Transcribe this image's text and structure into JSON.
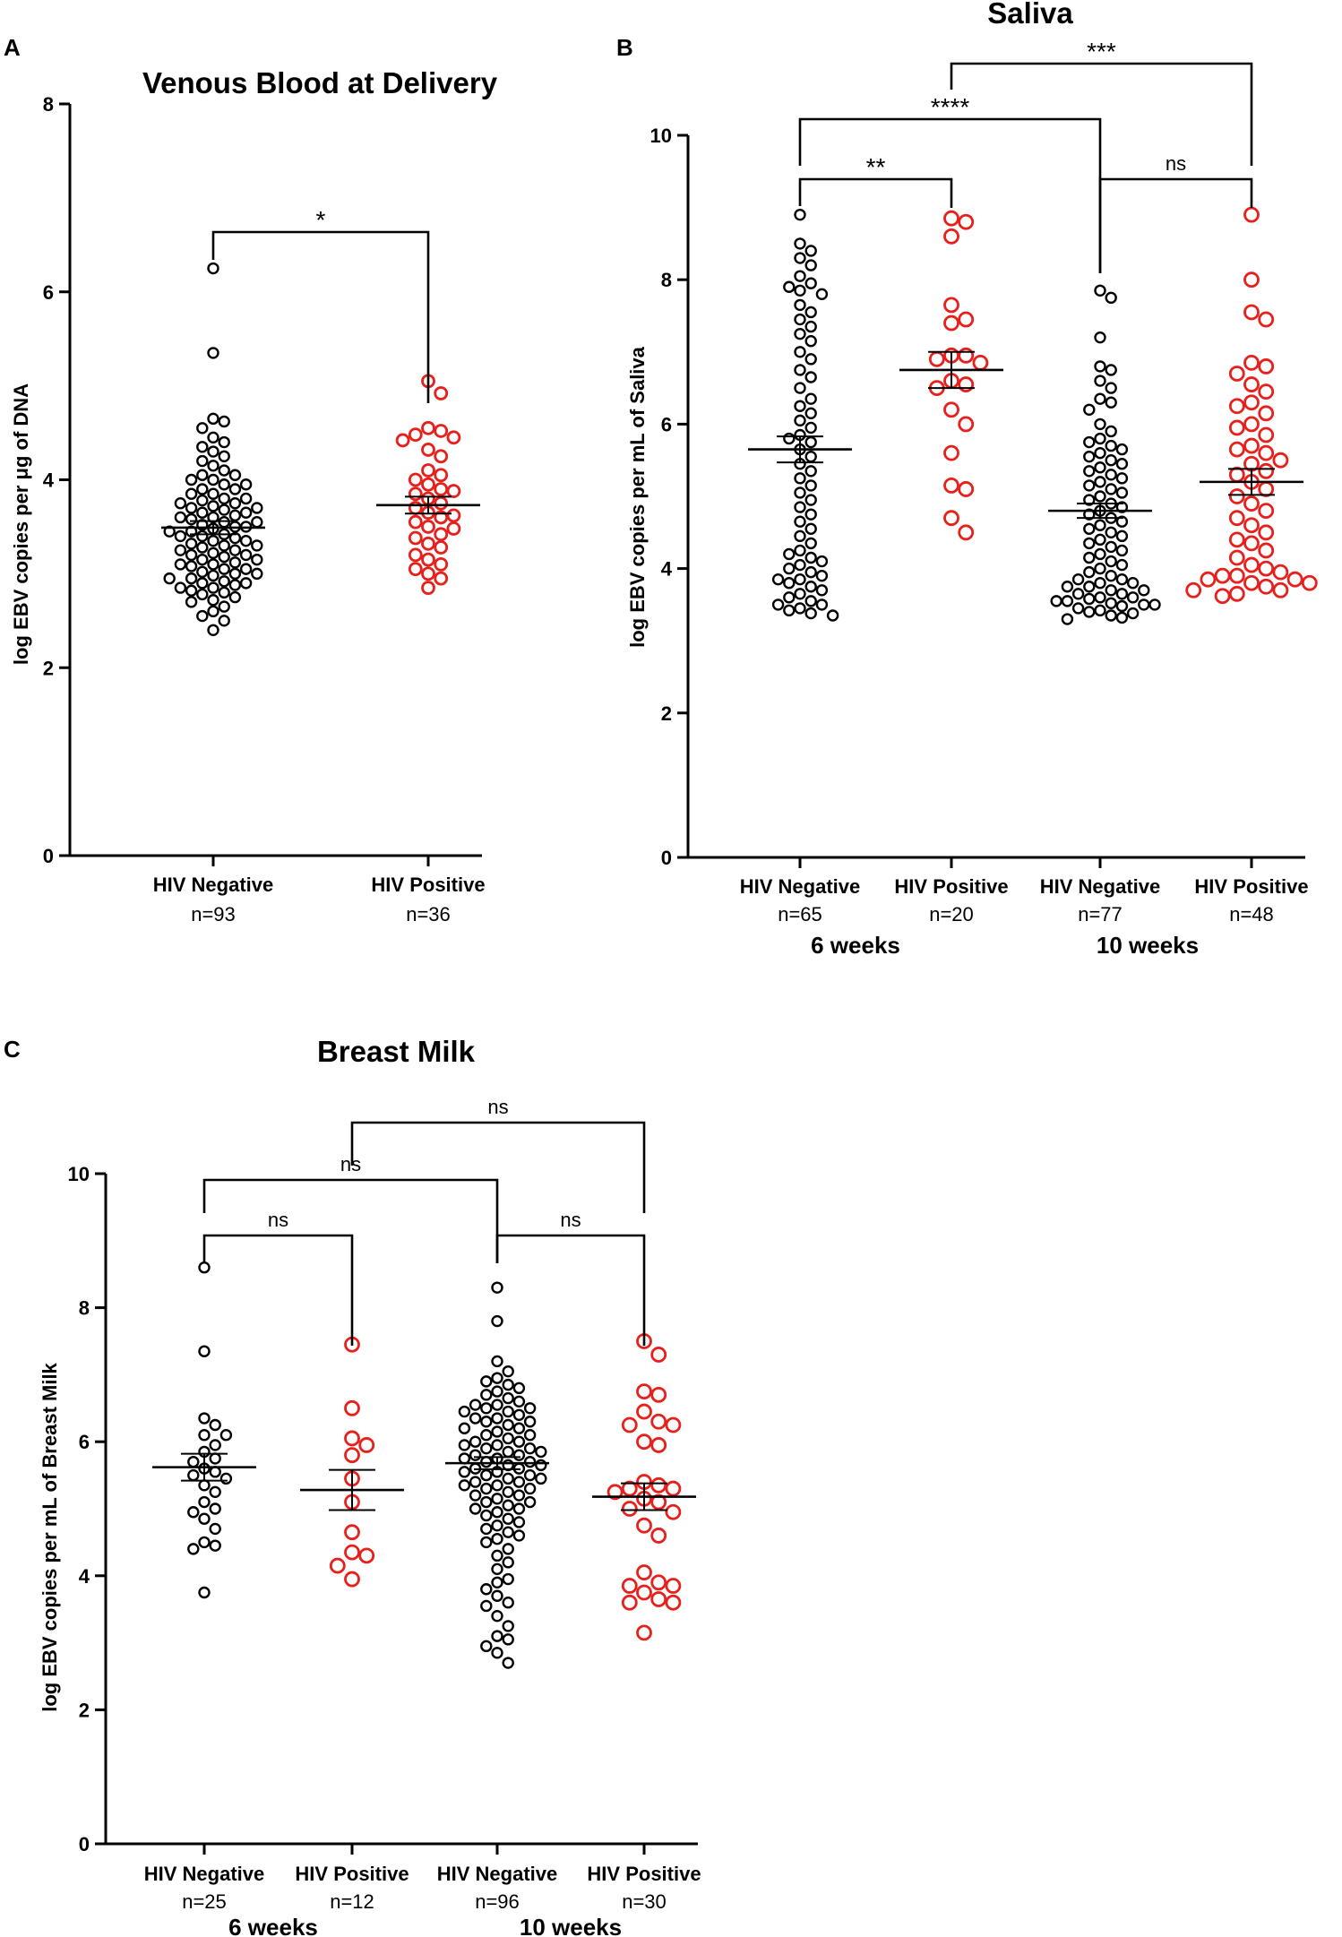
{
  "colors": {
    "negative": "#000000",
    "positive": "#e8201c",
    "axis": "#000000"
  },
  "chart_data": [
    {
      "panel": "A",
      "type": "scatter",
      "title": "Venous Blood at Delivery",
      "ylabel": "log EBV copies per μg of DNA",
      "ylim": [
        0,
        8
      ],
      "yticks": [
        "0",
        "2",
        "4",
        "6",
        "8"
      ],
      "groups": [
        {
          "name": "HIV Negative",
          "n": "n=93",
          "color": "negative",
          "mean": 3.49,
          "sem": 0.07,
          "values": [
            6.25,
            5.35,
            4.65,
            4.62,
            4.55,
            4.45,
            4.4,
            4.35,
            4.3,
            4.25,
            4.2,
            4.15,
            4.1,
            4.05,
            4.05,
            4.0,
            4.0,
            3.95,
            3.95,
            3.9,
            3.9,
            3.85,
            3.85,
            3.8,
            3.8,
            3.78,
            3.75,
            3.75,
            3.72,
            3.7,
            3.7,
            3.68,
            3.65,
            3.65,
            3.62,
            3.6,
            3.6,
            3.58,
            3.55,
            3.55,
            3.52,
            3.5,
            3.5,
            3.48,
            3.45,
            3.45,
            3.42,
            3.4,
            3.4,
            3.38,
            3.35,
            3.35,
            3.32,
            3.3,
            3.3,
            3.28,
            3.25,
            3.25,
            3.22,
            3.2,
            3.2,
            3.18,
            3.15,
            3.15,
            3.12,
            3.1,
            3.1,
            3.08,
            3.05,
            3.05,
            3.02,
            3.0,
            3.0,
            2.98,
            2.95,
            2.95,
            2.92,
            2.9,
            2.9,
            2.88,
            2.85,
            2.85,
            2.82,
            2.8,
            2.78,
            2.75,
            2.72,
            2.7,
            2.65,
            2.6,
            2.55,
            2.5,
            2.4
          ]
        },
        {
          "name": "HIV Positive",
          "n": "n=36",
          "color": "positive",
          "mean": 3.73,
          "sem": 0.09,
          "values": [
            5.05,
            4.92,
            4.55,
            4.52,
            4.48,
            4.45,
            4.42,
            4.32,
            4.25,
            4.1,
            4.05,
            4.0,
            3.95,
            3.9,
            3.88,
            3.85,
            3.8,
            3.75,
            3.7,
            3.65,
            3.62,
            3.6,
            3.55,
            3.5,
            3.48,
            3.42,
            3.38,
            3.32,
            3.28,
            3.2,
            3.15,
            3.1,
            3.05,
            3.0,
            2.95,
            2.85
          ]
        }
      ],
      "comparisons": [
        {
          "from": 0,
          "to": 1,
          "label": "*"
        }
      ]
    },
    {
      "panel": "B",
      "type": "scatter",
      "title": "Saliva",
      "ylabel": "log EBV copies per mL of Saliva",
      "ylim": [
        0,
        10
      ],
      "yticks": [
        "0",
        "2",
        "4",
        "6",
        "8",
        "10"
      ],
      "group_labels": [
        "6 weeks",
        "10 weeks"
      ],
      "groups": [
        {
          "name": "HIV Negative",
          "n": "n=65",
          "color": "negative",
          "mean": 5.65,
          "sem": 0.18,
          "values": [
            8.9,
            8.5,
            8.4,
            8.3,
            8.2,
            8.05,
            7.95,
            7.9,
            7.85,
            7.8,
            7.65,
            7.55,
            7.45,
            7.35,
            7.25,
            7.15,
            7.0,
            6.9,
            6.75,
            6.65,
            6.5,
            6.35,
            6.25,
            6.15,
            6.05,
            5.95,
            5.85,
            5.8,
            5.75,
            5.65,
            5.55,
            5.45,
            5.35,
            5.25,
            5.15,
            5.05,
            4.95,
            4.85,
            4.75,
            4.65,
            4.55,
            4.45,
            4.35,
            4.25,
            4.2,
            4.15,
            4.1,
            4.05,
            4.0,
            3.95,
            3.9,
            3.85,
            3.85,
            3.8,
            3.75,
            3.7,
            3.65,
            3.6,
            3.55,
            3.5,
            3.5,
            3.45,
            3.42,
            3.38,
            3.35
          ]
        },
        {
          "name": "HIV Positive",
          "n": "n=20",
          "color": "positive",
          "mean": 6.75,
          "sem": 0.25,
          "values": [
            8.85,
            8.8,
            8.6,
            7.65,
            7.45,
            7.4,
            6.95,
            6.95,
            6.9,
            6.85,
            6.6,
            6.55,
            6.5,
            6.2,
            6.0,
            5.6,
            5.15,
            5.1,
            4.7,
            4.5
          ]
        },
        {
          "name": "HIV Negative",
          "n": "n=77",
          "color": "negative",
          "mean": 4.8,
          "sem": 0.1,
          "values": [
            7.85,
            7.75,
            7.2,
            6.8,
            6.75,
            6.6,
            6.5,
            6.35,
            6.3,
            6.2,
            6.0,
            5.9,
            5.8,
            5.75,
            5.7,
            5.65,
            5.6,
            5.55,
            5.5,
            5.45,
            5.4,
            5.35,
            5.3,
            5.25,
            5.2,
            5.15,
            5.1,
            5.05,
            5.0,
            4.95,
            4.9,
            4.85,
            4.8,
            4.75,
            4.7,
            4.65,
            4.6,
            4.55,
            4.5,
            4.45,
            4.4,
            4.35,
            4.3,
            4.25,
            4.2,
            4.15,
            4.1,
            4.05,
            4.0,
            3.95,
            3.9,
            3.85,
            3.85,
            3.8,
            3.8,
            3.75,
            3.75,
            3.7,
            3.7,
            3.65,
            3.65,
            3.6,
            3.6,
            3.58,
            3.55,
            3.55,
            3.52,
            3.5,
            3.5,
            3.48,
            3.45,
            3.42,
            3.4,
            3.38,
            3.35,
            3.32,
            3.3
          ]
        },
        {
          "name": "HIV Positive",
          "n": "n=48",
          "color": "positive",
          "mean": 5.2,
          "sem": 0.18,
          "values": [
            8.9,
            8.0,
            7.55,
            7.45,
            6.85,
            6.8,
            6.7,
            6.55,
            6.45,
            6.3,
            6.25,
            6.15,
            6.0,
            5.95,
            5.85,
            5.7,
            5.65,
            5.6,
            5.5,
            5.45,
            5.35,
            5.3,
            5.2,
            5.1,
            5.0,
            4.9,
            4.8,
            4.7,
            4.6,
            4.5,
            4.4,
            4.35,
            4.25,
            4.15,
            4.05,
            4.0,
            3.95,
            3.9,
            3.9,
            3.85,
            3.85,
            3.8,
            3.8,
            3.75,
            3.7,
            3.7,
            3.65,
            3.62
          ]
        }
      ],
      "comparisons": [
        {
          "from": 0,
          "to": 1,
          "label": "**"
        },
        {
          "from": 2,
          "to": 3,
          "label": "ns"
        },
        {
          "from": 0,
          "to": 2,
          "label": "****"
        },
        {
          "from": 1,
          "to": 3,
          "label": "***"
        }
      ]
    },
    {
      "panel": "C",
      "type": "scatter",
      "title": "Breast Milk",
      "ylabel": "log EBV copies per mL of Breast Milk",
      "ylim": [
        0,
        10
      ],
      "yticks": [
        "0",
        "2",
        "4",
        "6",
        "8",
        "10"
      ],
      "group_labels": [
        "6 weeks",
        "10 weeks"
      ],
      "groups": [
        {
          "name": "HIV Negative",
          "n": "n=25",
          "color": "negative",
          "mean": 5.62,
          "sem": 0.2,
          "values": [
            8.6,
            7.35,
            6.35,
            6.25,
            6.1,
            6.1,
            5.95,
            5.85,
            5.75,
            5.7,
            5.6,
            5.55,
            5.5,
            5.45,
            5.35,
            5.25,
            5.1,
            5.0,
            4.95,
            4.85,
            4.7,
            4.5,
            4.45,
            4.4,
            3.75
          ]
        },
        {
          "name": "HIV Positive",
          "n": "n=12",
          "color": "positive",
          "mean": 5.28,
          "sem": 0.3,
          "values": [
            7.45,
            6.5,
            6.05,
            5.95,
            5.8,
            5.45,
            5.1,
            4.65,
            4.35,
            4.3,
            4.15,
            3.95
          ]
        },
        {
          "name": "HIV Negative",
          "n": "n=96",
          "color": "negative",
          "mean": 5.68,
          "sem": 0.09,
          "values": [
            8.3,
            7.8,
            7.2,
            7.05,
            6.95,
            6.9,
            6.85,
            6.8,
            6.75,
            6.7,
            6.65,
            6.6,
            6.55,
            6.55,
            6.5,
            6.5,
            6.45,
            6.45,
            6.4,
            6.35,
            6.35,
            6.3,
            6.3,
            6.25,
            6.2,
            6.2,
            6.15,
            6.1,
            6.1,
            6.05,
            6.0,
            6.0,
            5.95,
            5.95,
            5.9,
            5.9,
            5.85,
            5.85,
            5.8,
            5.8,
            5.75,
            5.75,
            5.7,
            5.7,
            5.65,
            5.65,
            5.6,
            5.6,
            5.55,
            5.55,
            5.5,
            5.5,
            5.45,
            5.45,
            5.4,
            5.4,
            5.35,
            5.35,
            5.3,
            5.3,
            5.25,
            5.2,
            5.2,
            5.15,
            5.1,
            5.1,
            5.05,
            5.0,
            5.0,
            4.95,
            4.9,
            4.85,
            4.8,
            4.75,
            4.7,
            4.65,
            4.6,
            4.55,
            4.5,
            4.4,
            4.3,
            4.2,
            4.1,
            3.95,
            3.9,
            3.8,
            3.7,
            3.6,
            3.55,
            3.4,
            3.25,
            3.1,
            3.05,
            2.95,
            2.85,
            2.7
          ]
        },
        {
          "name": "HIV Positive",
          "n": "n=30",
          "color": "positive",
          "mean": 5.18,
          "sem": 0.2,
          "values": [
            7.5,
            7.3,
            6.75,
            6.7,
            6.45,
            6.3,
            6.25,
            6.25,
            6.0,
            5.95,
            5.4,
            5.35,
            5.3,
            5.3,
            5.25,
            5.15,
            5.1,
            5.0,
            4.95,
            4.75,
            4.6,
            4.05,
            3.9,
            3.85,
            3.85,
            3.75,
            3.65,
            3.6,
            3.6,
            3.15
          ]
        }
      ],
      "comparisons": [
        {
          "from": 0,
          "to": 1,
          "label": "ns"
        },
        {
          "from": 2,
          "to": 3,
          "label": "ns"
        },
        {
          "from": 0,
          "to": 2,
          "label": "ns"
        },
        {
          "from": 1,
          "to": 3,
          "label": "ns"
        }
      ]
    }
  ]
}
